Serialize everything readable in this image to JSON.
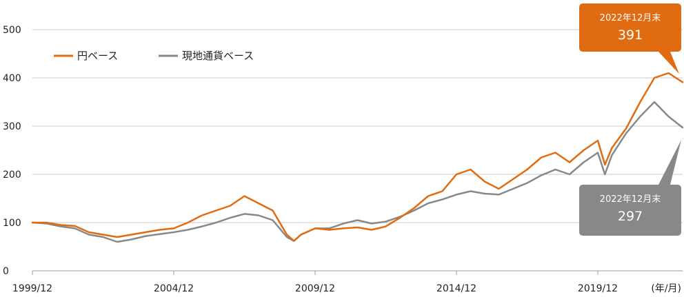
{
  "chart_data": {
    "type": "line",
    "title": "",
    "xlabel": "",
    "ylabel": "",
    "x_unit": "(年/月)",
    "x_tick_labels": [
      "1999/12",
      "2004/12",
      "2009/12",
      "2014/12",
      "2019/12"
    ],
    "x_range": [
      "1999/12",
      "2022/12"
    ],
    "y_ticks": [
      0,
      100,
      200,
      300,
      400,
      500
    ],
    "ylim": [
      0,
      500
    ],
    "grid": "horizontal",
    "legend_position": "top-left",
    "series": [
      {
        "name": "円ベース",
        "color": "#e06b10",
        "points": [
          [
            "1999/12",
            100
          ],
          [
            "2000/06",
            100
          ],
          [
            "2000/12",
            95
          ],
          [
            "2001/06",
            93
          ],
          [
            "2001/12",
            80
          ],
          [
            "2002/06",
            75
          ],
          [
            "2002/12",
            70
          ],
          [
            "2003/06",
            75
          ],
          [
            "2003/12",
            80
          ],
          [
            "2004/06",
            85
          ],
          [
            "2004/12",
            88
          ],
          [
            "2005/06",
            100
          ],
          [
            "2005/12",
            115
          ],
          [
            "2006/06",
            125
          ],
          [
            "2006/12",
            135
          ],
          [
            "2007/06",
            155
          ],
          [
            "2007/12",
            140
          ],
          [
            "2008/06",
            125
          ],
          [
            "2008/12",
            75
          ],
          [
            "2009/03",
            62
          ],
          [
            "2009/06",
            75
          ],
          [
            "2009/12",
            88
          ],
          [
            "2010/06",
            85
          ],
          [
            "2010/12",
            88
          ],
          [
            "2011/06",
            90
          ],
          [
            "2011/12",
            85
          ],
          [
            "2012/06",
            92
          ],
          [
            "2012/12",
            110
          ],
          [
            "2013/06",
            130
          ],
          [
            "2013/12",
            155
          ],
          [
            "2014/06",
            165
          ],
          [
            "2014/12",
            200
          ],
          [
            "2015/06",
            210
          ],
          [
            "2015/12",
            185
          ],
          [
            "2016/06",
            170
          ],
          [
            "2016/12",
            190
          ],
          [
            "2017/06",
            210
          ],
          [
            "2017/12",
            235
          ],
          [
            "2018/06",
            245
          ],
          [
            "2018/12",
            225
          ],
          [
            "2019/06",
            250
          ],
          [
            "2019/12",
            270
          ],
          [
            "2020/03",
            220
          ],
          [
            "2020/06",
            255
          ],
          [
            "2020/12",
            295
          ],
          [
            "2021/06",
            350
          ],
          [
            "2021/12",
            400
          ],
          [
            "2022/06",
            410
          ],
          [
            "2022/12",
            391
          ]
        ]
      },
      {
        "name": "現地通貨ベース",
        "color": "#888888",
        "points": [
          [
            "1999/12",
            100
          ],
          [
            "2000/06",
            98
          ],
          [
            "2000/12",
            92
          ],
          [
            "2001/06",
            88
          ],
          [
            "2001/12",
            75
          ],
          [
            "2002/06",
            70
          ],
          [
            "2002/12",
            60
          ],
          [
            "2003/06",
            65
          ],
          [
            "2003/12",
            72
          ],
          [
            "2004/06",
            76
          ],
          [
            "2004/12",
            80
          ],
          [
            "2005/06",
            85
          ],
          [
            "2005/12",
            92
          ],
          [
            "2006/06",
            100
          ],
          [
            "2006/12",
            110
          ],
          [
            "2007/06",
            118
          ],
          [
            "2007/12",
            115
          ],
          [
            "2008/06",
            105
          ],
          [
            "2008/12",
            70
          ],
          [
            "2009/03",
            62
          ],
          [
            "2009/06",
            75
          ],
          [
            "2009/12",
            88
          ],
          [
            "2010/06",
            88
          ],
          [
            "2010/12",
            98
          ],
          [
            "2011/06",
            105
          ],
          [
            "2011/12",
            98
          ],
          [
            "2012/06",
            102
          ],
          [
            "2012/12",
            112
          ],
          [
            "2013/06",
            125
          ],
          [
            "2013/12",
            140
          ],
          [
            "2014/06",
            148
          ],
          [
            "2014/12",
            158
          ],
          [
            "2015/06",
            165
          ],
          [
            "2015/12",
            160
          ],
          [
            "2016/06",
            158
          ],
          [
            "2016/12",
            170
          ],
          [
            "2017/06",
            182
          ],
          [
            "2017/12",
            198
          ],
          [
            "2018/06",
            210
          ],
          [
            "2018/12",
            200
          ],
          [
            "2019/06",
            225
          ],
          [
            "2019/12",
            245
          ],
          [
            "2020/03",
            200
          ],
          [
            "2020/06",
            240
          ],
          [
            "2020/12",
            285
          ],
          [
            "2021/06",
            320
          ],
          [
            "2021/12",
            350
          ],
          [
            "2022/06",
            320
          ],
          [
            "2022/12",
            297
          ]
        ]
      }
    ],
    "annotations": [
      {
        "series": "円ベース",
        "label": "2022年12月末",
        "value": "391",
        "color": "#e06b10"
      },
      {
        "series": "現地通貨ベース",
        "label": "2022年12月末",
        "value": "297",
        "color": "#888888"
      }
    ]
  }
}
